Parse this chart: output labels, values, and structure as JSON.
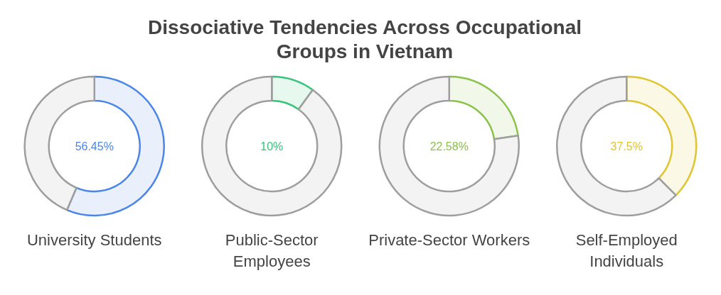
{
  "chart_data": [
    {
      "type": "other",
      "title": "Dissociative Tendencies Across Occupational Groups in Vietnam"
    },
    {
      "type": "donut",
      "xlabel": "University Students",
      "categories": [
        null,
        null
      ],
      "values": [
        56.45,
        43.55
      ],
      "colors": [
        "#4a86e8",
        "#9e9e9e"
      ],
      "annotations": [
        "56.45%"
      ]
    },
    {
      "type": "donut",
      "xlabel": "Public-Sector Employees",
      "categories": [
        null,
        null
      ],
      "values": [
        10,
        90
      ],
      "colors": [
        "#34c47c",
        "#9e9e9e"
      ],
      "annotations": [
        "10%"
      ]
    },
    {
      "type": "donut",
      "xlabel": "Private-Sector Workers",
      "categories": [
        null,
        null
      ],
      "values": [
        22.58,
        77.42
      ],
      "colors": [
        "#8bc34a",
        "#9e9e9e"
      ],
      "annotations": [
        "22.58%"
      ]
    },
    {
      "type": "donut",
      "xlabel": "Self-Employed Individuals",
      "categories": [
        null,
        null
      ],
      "values": [
        37.5,
        62.5
      ],
      "colors": [
        "#e0c430",
        "#9e9e9e"
      ],
      "annotations": [
        "37.5%"
      ]
    }
  ]
}
